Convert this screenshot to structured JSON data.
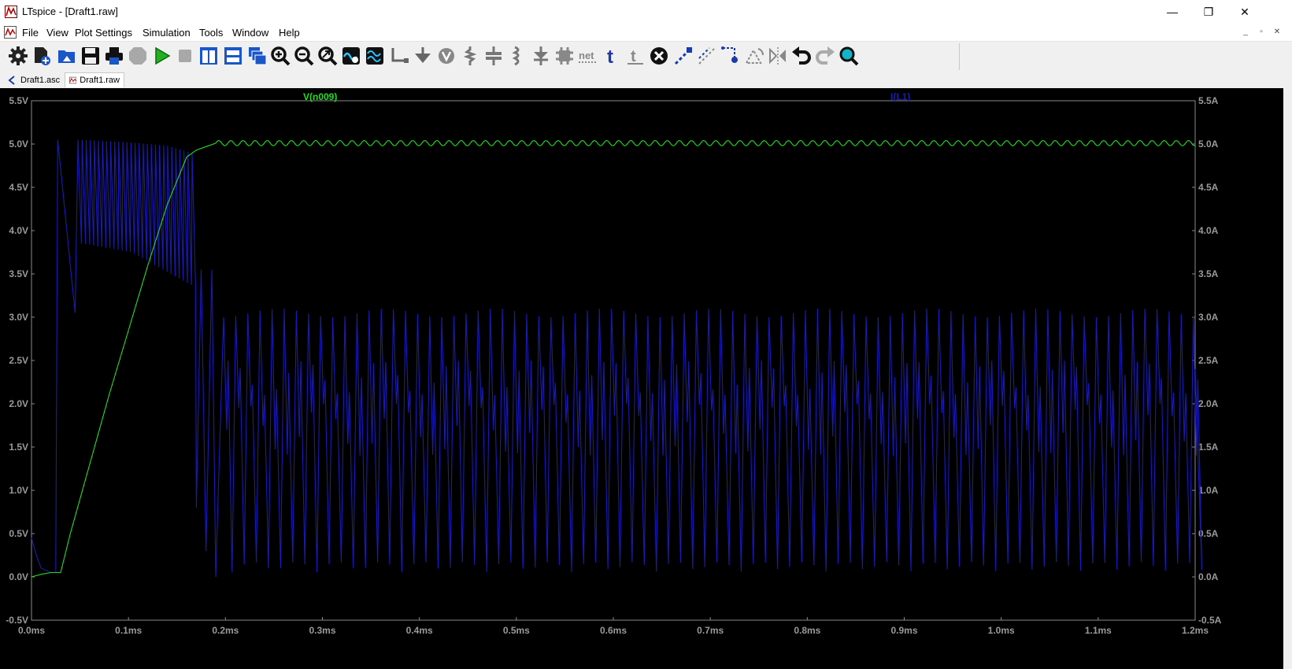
{
  "window": {
    "title": "LTspice - [Draft1.raw]",
    "minimize_glyph": "—",
    "maximize_glyph": "❐",
    "close_glyph": "✕"
  },
  "menu": [
    "File",
    "View",
    "Plot Settings",
    "Simulation",
    "Tools",
    "Window",
    "Help"
  ],
  "mdi_controls": [
    "_",
    "▫",
    "✕"
  ],
  "toolbar_icons": [
    "settings-icon",
    "new-schematic-icon",
    "open-icon",
    "save-icon",
    "print-icon",
    "halt-icon",
    "run-icon",
    "stop-icon",
    "tile-vertical-icon",
    "tile-horizontal-icon",
    "cascade-icon",
    "zoom-in-icon",
    "zoom-out-icon",
    "zoom-fit-icon",
    "autorange-icon",
    "waveform-icon",
    "wire-icon",
    "ground-icon",
    "voltage-icon",
    "resistor-icon",
    "capacitor-icon",
    "inductor-icon",
    "diode-icon",
    "component-icon",
    "label-net-icon",
    "text-icon",
    "spice-directive-icon",
    "delete-icon",
    "duplicate-icon",
    "move-icon",
    "drag-icon",
    "rotate-icon",
    "mirror-icon",
    "undo-icon",
    "redo-icon",
    "find-icon"
  ],
  "tabs": [
    {
      "label": "Draft1.asc",
      "icon": "schematic-tab-icon",
      "active": false
    },
    {
      "label": "Draft1.raw",
      "icon": "waveform-tab-icon",
      "active": true
    }
  ],
  "colors": {
    "plot_background": "#000000",
    "axis_text": "#9a9a9a",
    "voltage_trace": "#22dd22",
    "current_trace": "#1a1ab8"
  },
  "chart_data": {
    "type": "line",
    "title": "",
    "xlabel": "",
    "x_ticks": [
      "0.0ms",
      "0.1ms",
      "0.2ms",
      "0.3ms",
      "0.4ms",
      "0.5ms",
      "0.6ms",
      "0.7ms",
      "0.8ms",
      "0.9ms",
      "1.0ms",
      "1.1ms",
      "1.2ms"
    ],
    "left_ticks": [
      "5.5V",
      "5.0V",
      "4.5V",
      "4.0V",
      "3.5V",
      "3.0V",
      "2.5V",
      "2.0V",
      "1.5V",
      "1.0V",
      "0.5V",
      "0.0V",
      "-0.5V"
    ],
    "right_ticks": [
      "5.5A",
      "5.0A",
      "4.5A",
      "4.0A",
      "3.5A",
      "3.0A",
      "2.5A",
      "2.0A",
      "1.5A",
      "1.0A",
      "0.5A",
      "0.0A",
      "-0.5A"
    ],
    "xlim_ms": [
      0.0,
      1.2
    ],
    "ylim_left_V": [
      -0.5,
      5.5
    ],
    "ylim_right_A": [
      -0.5,
      5.5
    ],
    "grid": false,
    "series": [
      {
        "name": "V(n009)",
        "axis": "left",
        "points_ms_V": [
          [
            0.0,
            0.0
          ],
          [
            0.01,
            0.03
          ],
          [
            0.02,
            0.05
          ],
          [
            0.025,
            0.05
          ],
          [
            0.03,
            0.05
          ],
          [
            0.04,
            0.5
          ],
          [
            0.06,
            1.3
          ],
          [
            0.08,
            2.1
          ],
          [
            0.1,
            2.85
          ],
          [
            0.12,
            3.6
          ],
          [
            0.14,
            4.3
          ],
          [
            0.16,
            4.85
          ],
          [
            0.17,
            4.93
          ],
          [
            0.18,
            4.97
          ],
          [
            0.19,
            5.01
          ]
        ],
        "steady_state_V": 5.01,
        "ripple_V": 0.03,
        "ripple_period_ms": 0.0125
      },
      {
        "name": "I(L1)",
        "axis": "right",
        "startup": {
          "spike_peak_A": 5.05,
          "spike_time_ms": 0.027,
          "dip_A": 3.05,
          "dip_time_ms": 0.045,
          "envelope_peak_A": [
            [
              0.05,
              5.05
            ],
            [
              0.1,
              5.02
            ],
            [
              0.14,
              4.98
            ],
            [
              0.165,
              4.9
            ]
          ],
          "envelope_valley_A": [
            [
              0.05,
              3.85
            ],
            [
              0.1,
              3.75
            ],
            [
              0.14,
              3.5
            ],
            [
              0.165,
              3.35
            ]
          ]
        },
        "steady_state": {
          "peak_A": 3.05,
          "valley_A": 0.05,
          "switching_period_ms": 0.0125,
          "start_ms": 0.185
        }
      }
    ]
  }
}
